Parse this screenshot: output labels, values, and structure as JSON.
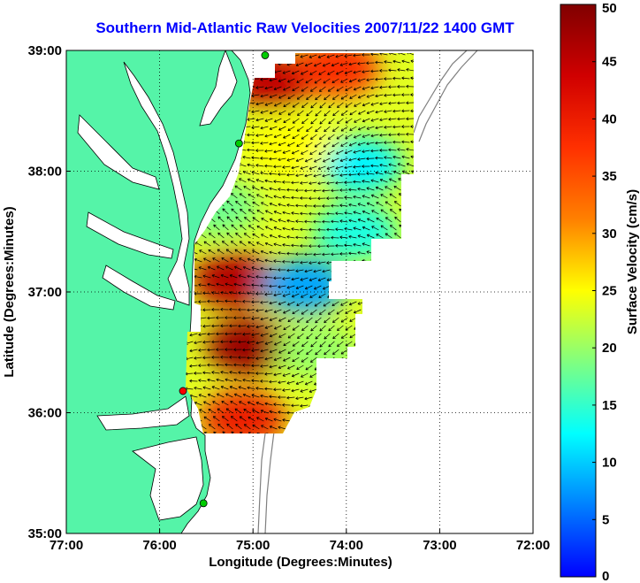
{
  "title": "Southern Mid-Atlantic Raw Velocities 2007/11/22 1400 GMT",
  "colors": {
    "title": "#0000ff",
    "land": "#55f4a8",
    "coast": "#000000",
    "bathy": "#7f7f7f",
    "grid": "#000000",
    "station": "#00cc00",
    "station_active": "#ff0000"
  },
  "axes": {
    "xlabel": "Longitude (Degrees:Minutes)",
    "ylabel": "Latitude (Degrees:Minutes)",
    "xticks": [
      {
        "value": -77,
        "label": "77:00"
      },
      {
        "value": -76,
        "label": "76:00"
      },
      {
        "value": -75,
        "label": "75:00"
      },
      {
        "value": -74,
        "label": "74:00"
      },
      {
        "value": -73,
        "label": "73:00"
      },
      {
        "value": -72,
        "label": "72:00"
      }
    ],
    "yticks": [
      {
        "value": 35,
        "label": "35:00"
      },
      {
        "value": 36,
        "label": "36:00"
      },
      {
        "value": 37,
        "label": "37:00"
      },
      {
        "value": 38,
        "label": "38:00"
      },
      {
        "value": 39,
        "label": "39:00"
      }
    ],
    "xlim": [
      -77,
      -72
    ],
    "ylim": [
      35,
      39
    ],
    "grid": true
  },
  "colorbar": {
    "label": "Surface Velocity (cm/s)",
    "range": [
      0,
      50
    ],
    "ticks": [
      {
        "value": 0,
        "label": "0"
      },
      {
        "value": 5,
        "label": "5"
      },
      {
        "value": 10,
        "label": "10"
      },
      {
        "value": 15,
        "label": "15"
      },
      {
        "value": 20,
        "label": "20"
      },
      {
        "value": 25,
        "label": "25"
      },
      {
        "value": 30,
        "label": "30"
      },
      {
        "value": 35,
        "label": "35"
      },
      {
        "value": 40,
        "label": "40"
      },
      {
        "value": 45,
        "label": "45"
      },
      {
        "value": 50,
        "label": "50"
      }
    ]
  },
  "stations": [
    {
      "lon": -74.87,
      "lat": 38.96,
      "active": false
    },
    {
      "lon": -75.15,
      "lat": 38.23,
      "active": false
    },
    {
      "lon": -75.75,
      "lat": 36.18,
      "active": true
    },
    {
      "lon": -75.53,
      "lat": 35.25,
      "active": false
    }
  ],
  "velocity_features": [
    {
      "lon": -74.8,
      "lat": 38.75,
      "speed": 45
    },
    {
      "lon": -74.1,
      "lat": 38.85,
      "speed": 38
    },
    {
      "lon": -73.85,
      "lat": 38.05,
      "speed": 12
    },
    {
      "lon": -74.6,
      "lat": 38.2,
      "speed": 25
    },
    {
      "lon": -75.2,
      "lat": 37.1,
      "speed": 46
    },
    {
      "lon": -74.45,
      "lat": 37.05,
      "speed": 8
    },
    {
      "lon": -73.9,
      "lat": 37.5,
      "speed": 14
    },
    {
      "lon": -75.05,
      "lat": 36.55,
      "speed": 48
    },
    {
      "lon": -74.3,
      "lat": 36.5,
      "speed": 20
    },
    {
      "lon": -75.1,
      "lat": 35.95,
      "speed": 40
    },
    {
      "lon": -75.4,
      "lat": 37.7,
      "speed": 18
    }
  ]
}
